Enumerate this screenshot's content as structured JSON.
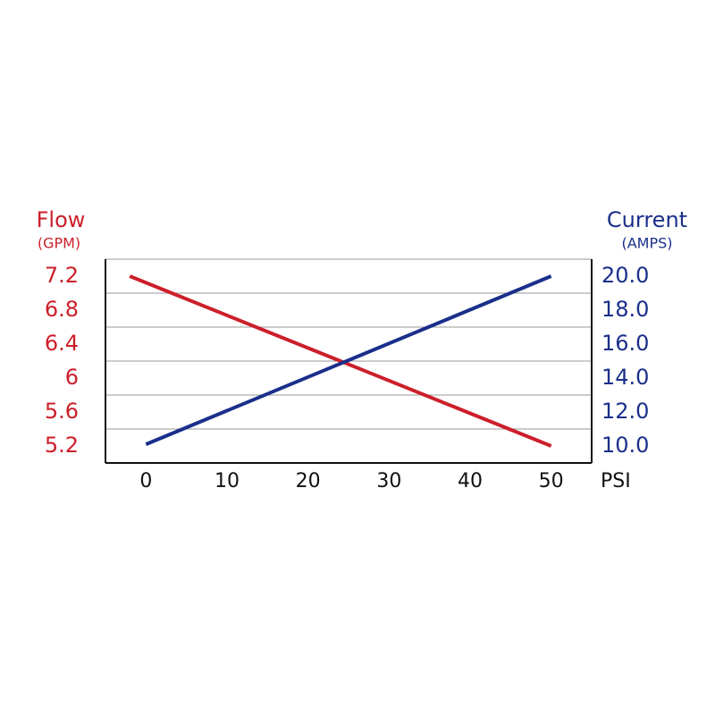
{
  "chart_data": {
    "type": "line",
    "y_label": "Flow",
    "y_unit": "(GPM)",
    "y2_label": "Current",
    "y2_unit": "(AMPS)",
    "x_label": "PSI",
    "xlim": [
      -5,
      55
    ],
    "xticks": [
      0,
      10,
      20,
      30,
      40,
      50
    ],
    "ylim": [
      5.0,
      7.4
    ],
    "yticks": [
      5.2,
      5.6,
      6.0,
      6.4,
      6.8,
      7.2
    ],
    "y2lim": [
      9,
      21
    ],
    "y2ticks": [
      {
        "value": 10,
        "label": "10.0"
      },
      {
        "value": 12,
        "label": "12.0"
      },
      {
        "value": 14,
        "label": "14.0"
      },
      {
        "value": 16,
        "label": "16.0"
      },
      {
        "value": 18,
        "label": "18.0"
      },
      {
        "value": 20,
        "label": "20.0"
      }
    ],
    "grid": true,
    "series": [
      {
        "name": "Flow",
        "color": "#cc1f2a",
        "axis": "y",
        "x": [
          -2,
          50
        ],
        "values": [
          7.2,
          5.2
        ]
      },
      {
        "name": "Current",
        "color": "#1a2f8a",
        "axis": "y2",
        "x": [
          0,
          50
        ],
        "values": [
          10.1,
          20
        ]
      }
    ]
  }
}
